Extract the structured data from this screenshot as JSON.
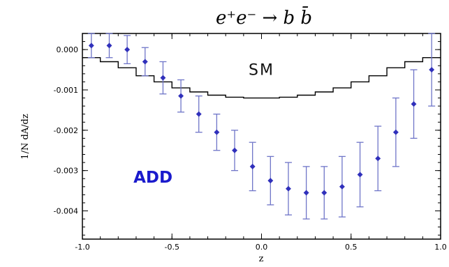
{
  "chart_data": {
    "type": "scatter",
    "title": "e⁺e⁻ → b b̄",
    "xlabel": "z",
    "ylabel": "1/N dA/dz",
    "xlim": [
      -1.0,
      1.0
    ],
    "ylim": [
      -0.0047,
      0.0004
    ],
    "x_ticks": [
      {
        "value": -1.0,
        "label": "-1.0"
      },
      {
        "value": -0.5,
        "label": "-0.5"
      },
      {
        "value": 0.0,
        "label": "0.0"
      },
      {
        "value": 0.5,
        "label": "0.5"
      },
      {
        "value": 1.0,
        "label": "1.0"
      }
    ],
    "y_ticks": [
      {
        "value": 0.0,
        "label": "0.000"
      },
      {
        "value": -0.001,
        "label": "-0.001"
      },
      {
        "value": -0.002,
        "label": "-0.002"
      },
      {
        "value": -0.003,
        "label": "-0.003"
      },
      {
        "value": -0.004,
        "label": "-0.004"
      }
    ],
    "series": [
      {
        "name": "SM",
        "kind": "histogram",
        "color": "#000000",
        "bin_edges": [
          -1.0,
          -0.9,
          -0.8,
          -0.7,
          -0.6,
          -0.5,
          -0.4,
          -0.3,
          -0.2,
          -0.1,
          0.0,
          0.1,
          0.2,
          0.3,
          0.4,
          0.5,
          0.6,
          0.7,
          0.8,
          0.9,
          1.0
        ],
        "values": [
          -0.0002,
          -0.0003,
          -0.00045,
          -0.00065,
          -0.0008,
          -0.00095,
          -0.00105,
          -0.00113,
          -0.00118,
          -0.0012,
          -0.0012,
          -0.00118,
          -0.00113,
          -0.00105,
          -0.00095,
          -0.0008,
          -0.00065,
          -0.00045,
          -0.0003,
          -0.0002
        ]
      },
      {
        "name": "ADD",
        "kind": "points-with-errors",
        "color": "#3030bb",
        "x": [
          -0.95,
          -0.85,
          -0.75,
          -0.65,
          -0.55,
          -0.45,
          -0.35,
          -0.25,
          -0.15,
          -0.05,
          0.05,
          0.15,
          0.25,
          0.35,
          0.45,
          0.55,
          0.65,
          0.75,
          0.85,
          0.95
        ],
        "y": [
          0.0001,
          0.0001,
          0.0,
          -0.0003,
          -0.0007,
          -0.00115,
          -0.0016,
          -0.00205,
          -0.0025,
          -0.0029,
          -0.00325,
          -0.00345,
          -0.00355,
          -0.00355,
          -0.0034,
          -0.0031,
          -0.0027,
          -0.00205,
          -0.00135,
          -0.0005
        ],
        "err": [
          0.0003,
          0.0003,
          0.00035,
          0.00035,
          0.0004,
          0.0004,
          0.00045,
          0.00045,
          0.0005,
          0.0006,
          0.0006,
          0.00065,
          0.00065,
          0.00065,
          0.00075,
          0.0008,
          0.0008,
          0.00085,
          0.00085,
          0.0009
        ]
      }
    ],
    "annotations": [
      {
        "text": "SM",
        "x": 0.0,
        "y": -0.00063,
        "color": "#111111"
      },
      {
        "text": "ADD",
        "x": -0.45,
        "y": -0.0033,
        "color": "#1a1acc"
      }
    ],
    "grid": false,
    "legend": "none"
  }
}
